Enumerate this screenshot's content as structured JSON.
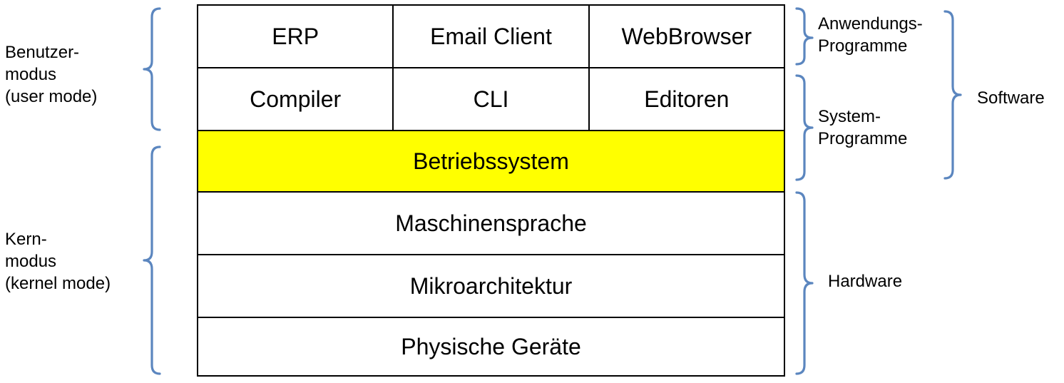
{
  "stack": {
    "rows": [
      {
        "cells": [
          "ERP",
          "Email Client",
          "WebBrowser"
        ]
      },
      {
        "cells": [
          "Compiler",
          "CLI",
          "Editoren"
        ]
      },
      {
        "cells": [
          "Betriebssystem"
        ],
        "highlight": "#ffff00"
      },
      {
        "cells": [
          "Maschinensprache"
        ]
      },
      {
        "cells": [
          "Mikroarchitektur"
        ]
      },
      {
        "cells": [
          "Physische Geräte"
        ]
      }
    ]
  },
  "left_labels": {
    "user_mode": [
      "Benutzer-",
      "modus",
      "(user mode)"
    ],
    "kernel_mode": [
      "Kern-",
      "modus",
      "(kernel mode)"
    ]
  },
  "right_labels": {
    "application_programs": [
      "Anwendungs-",
      "Programme"
    ],
    "system_programs": [
      "System-",
      "Programme"
    ],
    "software": "Software",
    "hardware": "Hardware"
  },
  "colors": {
    "brace": "#5b86bf",
    "highlight": "#ffff00"
  }
}
